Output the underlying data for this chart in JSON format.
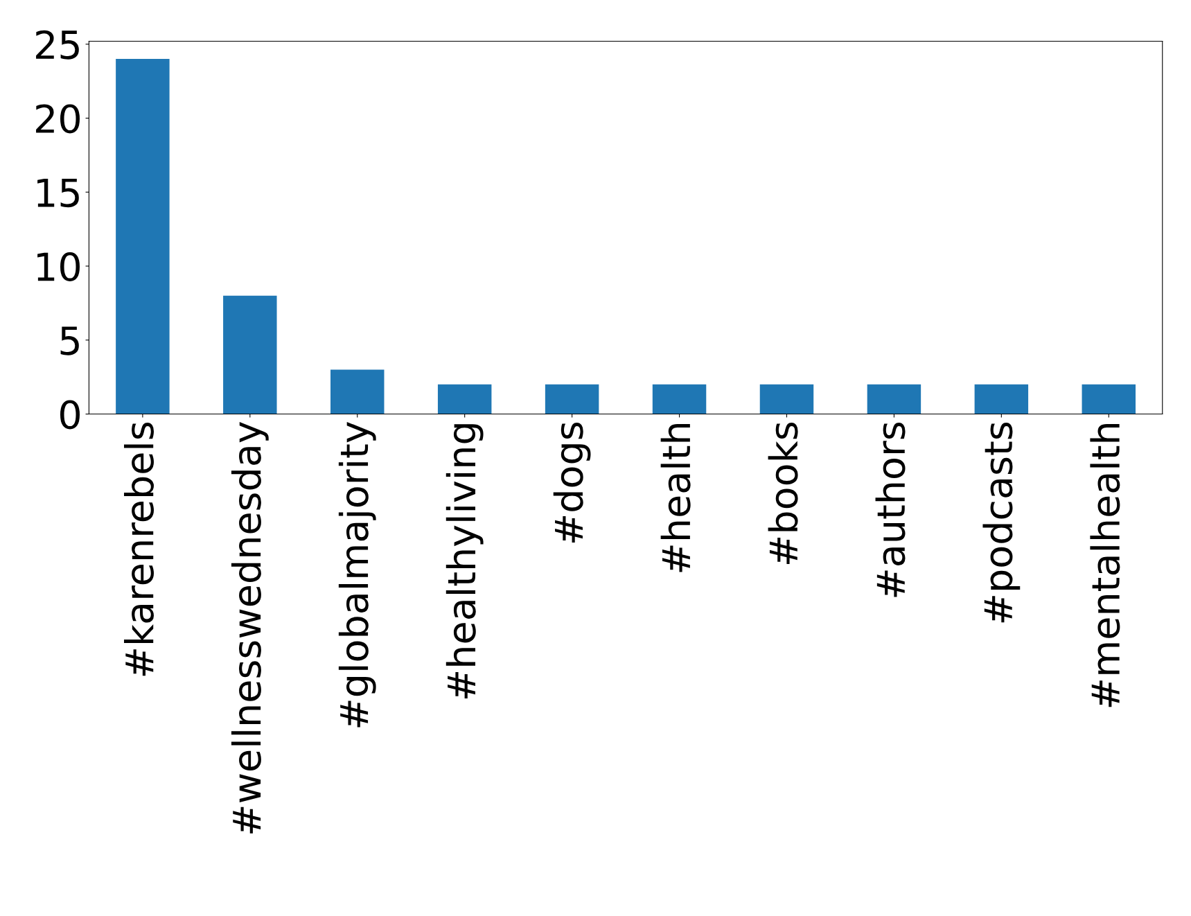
{
  "chart_data": {
    "type": "bar",
    "categories": [
      "#karenrebels",
      "#wellnesswednesday",
      "#globalmajority",
      "#healthyliving",
      "#dogs",
      "#health",
      "#books",
      "#authors",
      "#podcasts",
      "#mentalhealth"
    ],
    "values": [
      24,
      8,
      3,
      2,
      2,
      2,
      2,
      2,
      2,
      2
    ],
    "color": "#1f77b4",
    "ylim": [
      0,
      25.2
    ],
    "yticks": [
      0,
      5,
      10,
      15,
      20,
      25
    ],
    "grid": false,
    "legend": false
  }
}
